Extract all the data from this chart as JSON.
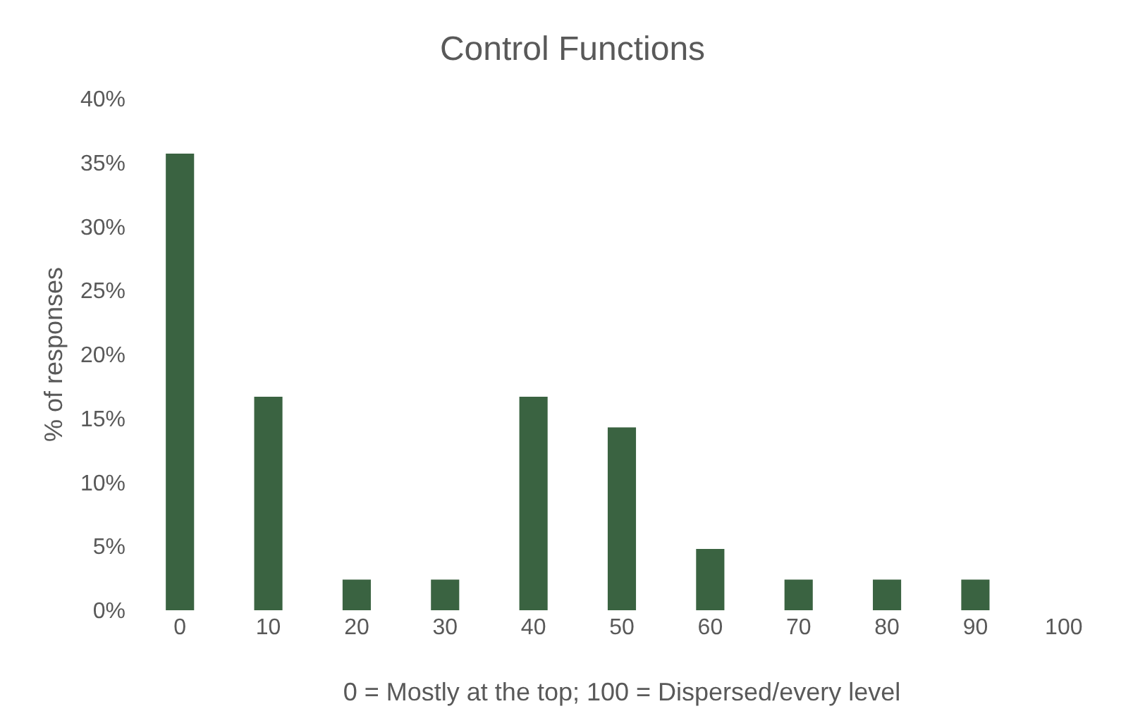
{
  "chart_data": {
    "type": "bar",
    "title": "Control Functions",
    "xlabel": "0 = Mostly at the top; 100 = Dispersed/every level",
    "ylabel": "% of responses",
    "categories": [
      "0",
      "10",
      "20",
      "30",
      "40",
      "50",
      "60",
      "70",
      "80",
      "90",
      "100"
    ],
    "values": [
      35.7,
      16.7,
      2.4,
      2.4,
      16.7,
      14.3,
      4.8,
      2.4,
      2.4,
      2.4,
      0
    ],
    "color": "#3a6341",
    "ylim": [
      0,
      40
    ],
    "yticks": [
      {
        "value": 0,
        "label": "0%"
      },
      {
        "value": 5,
        "label": "5%"
      },
      {
        "value": 10,
        "label": "10%"
      },
      {
        "value": 15,
        "label": "15%"
      },
      {
        "value": 20,
        "label": "20%"
      },
      {
        "value": 25,
        "label": "25%"
      },
      {
        "value": 30,
        "label": "30%"
      },
      {
        "value": 35,
        "label": "35%"
      },
      {
        "value": 40,
        "label": "40%"
      }
    ],
    "grid": false,
    "legend": false
  }
}
